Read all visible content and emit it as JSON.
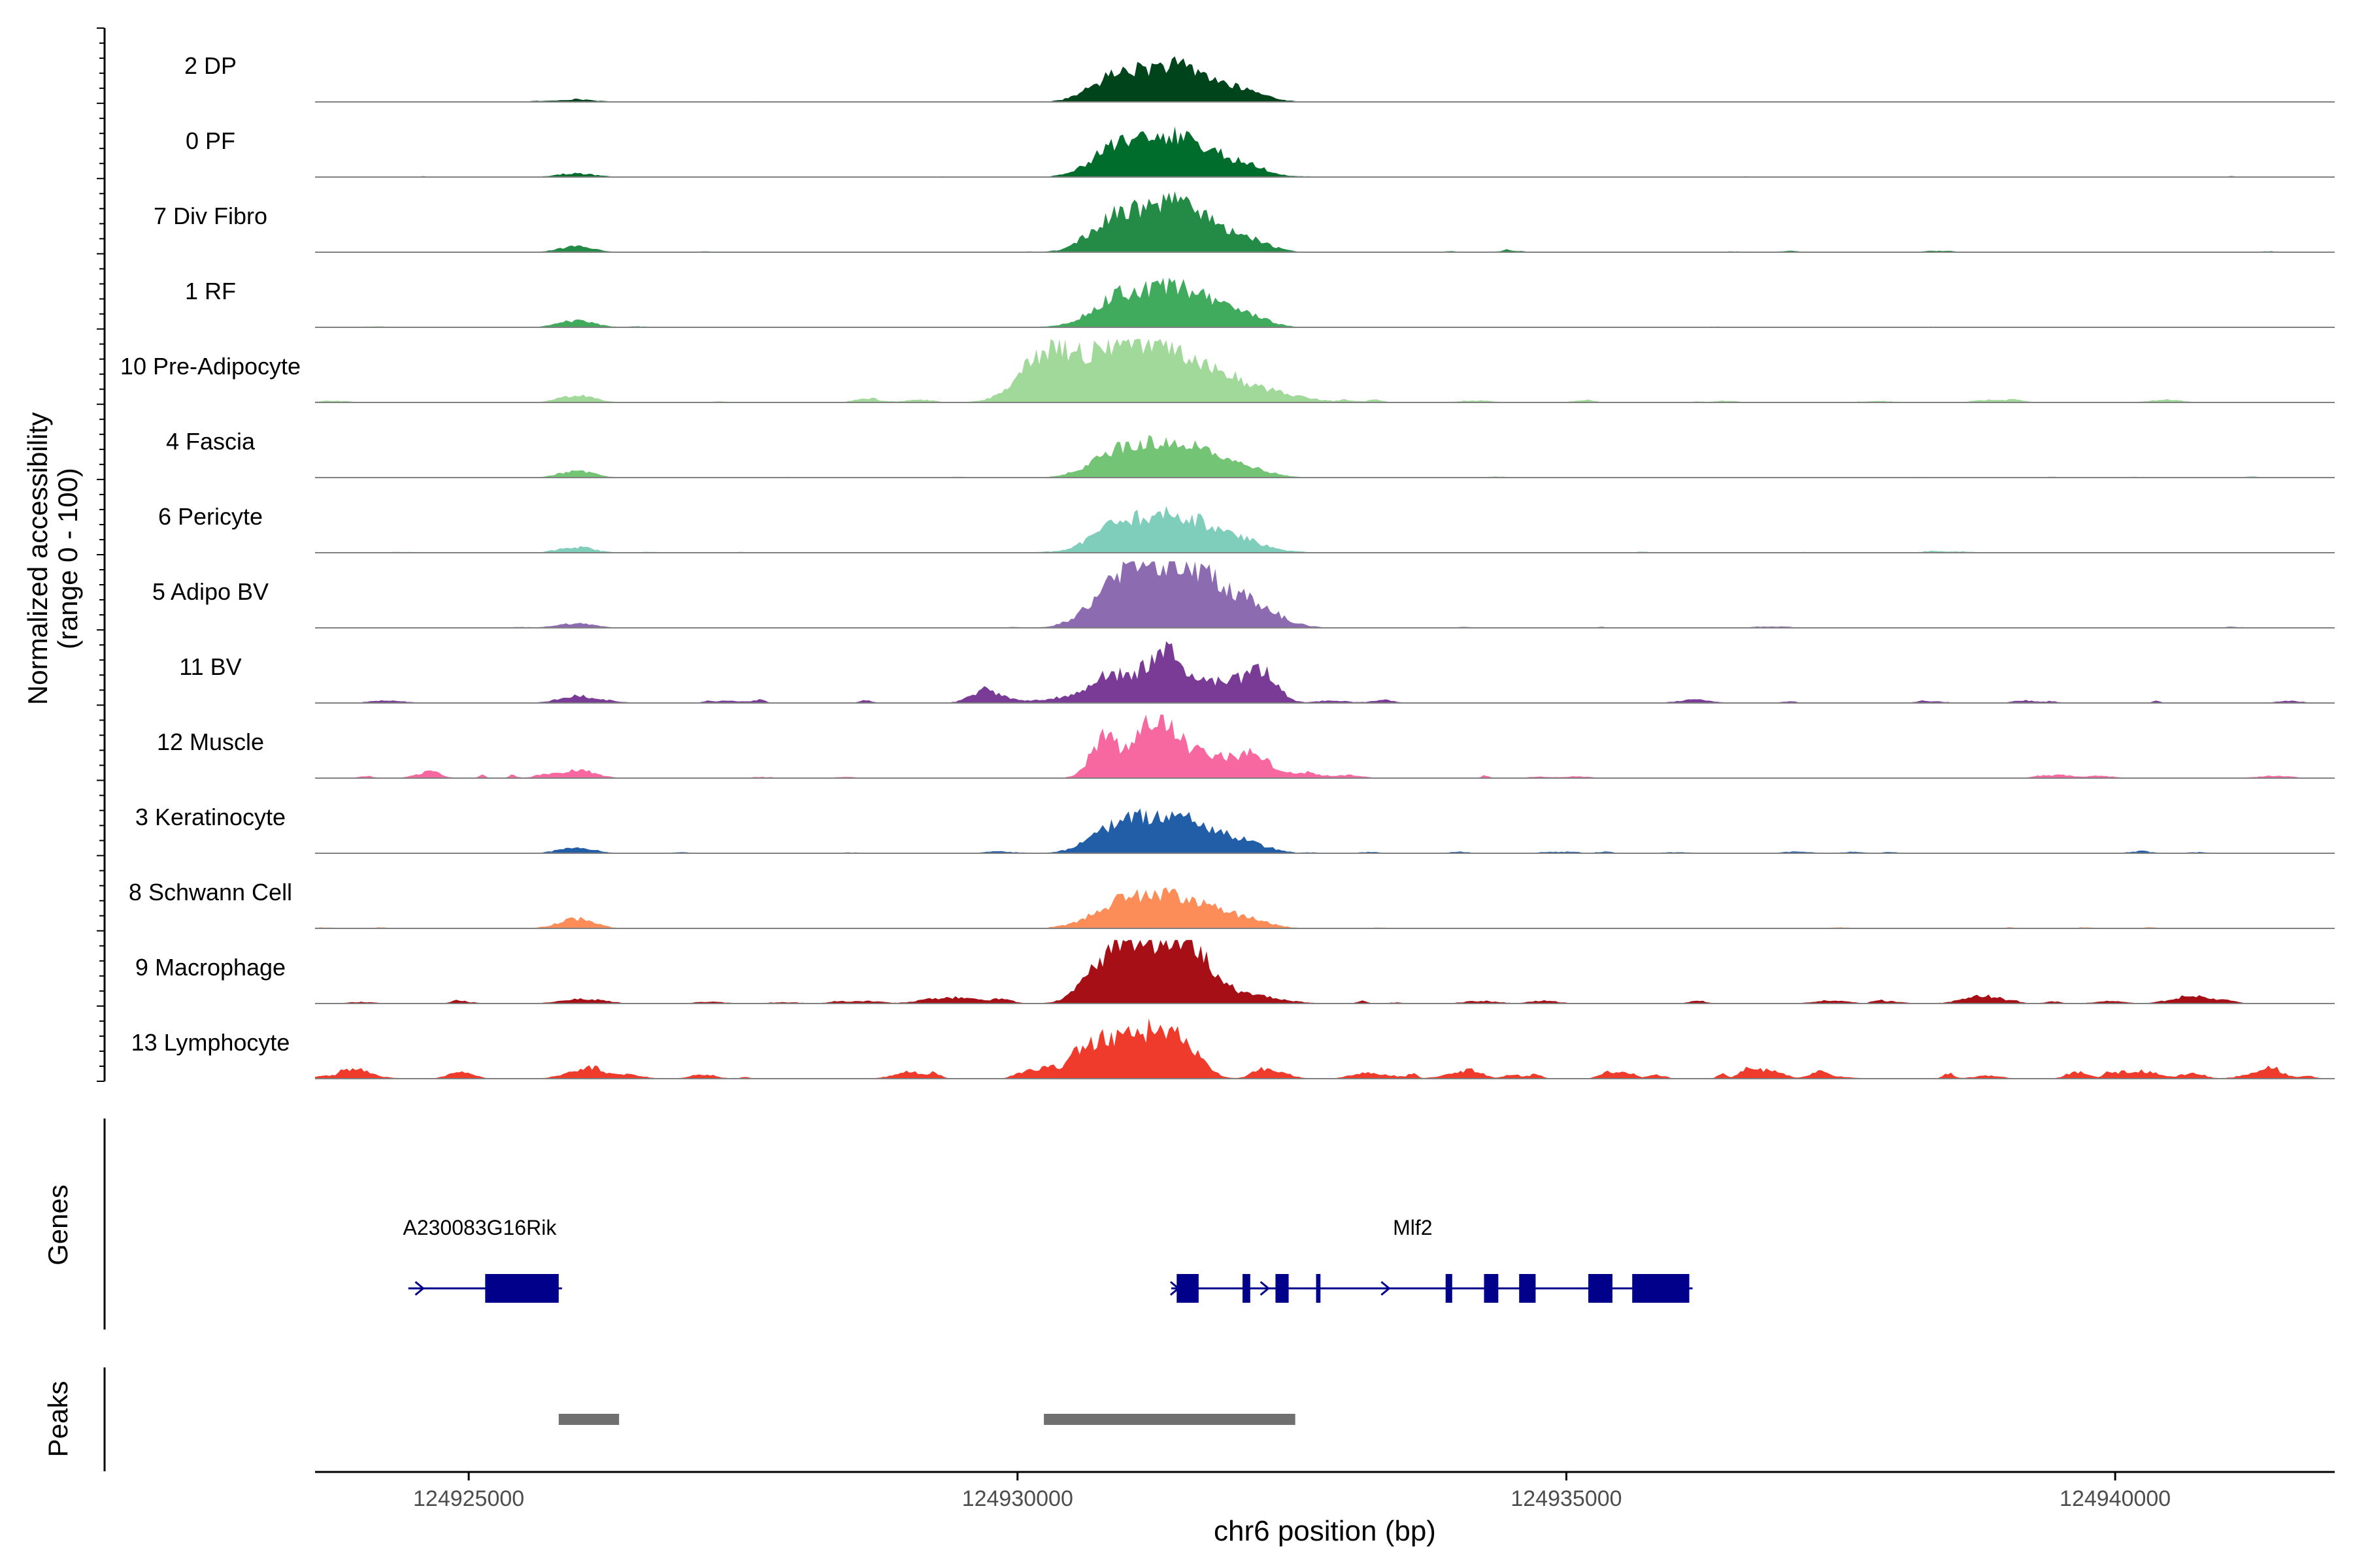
{
  "chart_data": {
    "type": "area",
    "title": "",
    "chromosome": "chr6",
    "xlabel": "chr6 position (bp)",
    "ylabel": "Normalized accessibility",
    "ylabel_sub": "(range 0 - 100)",
    "xlim": [
      124923600,
      124942000
    ],
    "ylim": [
      0,
      100
    ],
    "x_ticks": [
      124925000,
      124930000,
      124935000,
      124940000
    ],
    "x_tick_labels": [
      "124925000",
      "124930000",
      "124935000",
      "124940000"
    ],
    "genes_label": "Genes",
    "peaks_label": "Peaks",
    "tracks": [
      {
        "name": "2 DP",
        "color": "#00441b",
        "level": 0.16,
        "noise": 0.25,
        "left_bump": 0.25,
        "extra": [],
        "shape": "std"
      },
      {
        "name": "0 PF",
        "color": "#006d2c",
        "level": 0.18,
        "noise": 0.3,
        "left_bump": 0.3,
        "extra": [],
        "shape": "std"
      },
      {
        "name": "7 Div Fibro",
        "color": "#238b45",
        "level": 0.21,
        "noise": 0.45,
        "left_bump": 0.4,
        "extra": [],
        "shape": "std"
      },
      {
        "name": "1 RF",
        "color": "#41ab5d",
        "level": 0.18,
        "noise": 0.3,
        "left_bump": 0.55,
        "extra": [],
        "shape": "std"
      },
      {
        "name": "10 Pre-Adipocyte",
        "color": "#a1d99b",
        "level": 0.21,
        "noise": 0.8,
        "left_bump": 0.5,
        "extra": [],
        "shape": "preadipo"
      },
      {
        "name": "4 Fascia",
        "color": "#74c476",
        "level": 0.16,
        "noise": 0.35,
        "left_bump": 0.6,
        "extra": [],
        "shape": "std"
      },
      {
        "name": "6 Pericyte",
        "color": "#7fcdbb",
        "level": 0.17,
        "noise": 0.4,
        "left_bump": 0.5,
        "extra": [],
        "shape": "std"
      },
      {
        "name": "5 Adipo BV",
        "color": "#8c6bb1",
        "level": 0.22,
        "noise": 0.3,
        "left_bump": 0.3,
        "extra": [],
        "shape": "broad"
      },
      {
        "name": "11 BV",
        "color": "#7a3b96",
        "level": 0.21,
        "noise": 1.0,
        "left_bump": 0.5,
        "extra": [],
        "shape": "bv"
      },
      {
        "name": "12 Muscle",
        "color": "#f768a1",
        "level": 0.21,
        "noise": 0.9,
        "left_bump": 0.6,
        "extra": [],
        "shape": "spiky"
      },
      {
        "name": "3 Keratinocyte",
        "color": "#225ea8",
        "level": 0.17,
        "noise": 0.6,
        "left_bump": 0.5,
        "extra": [],
        "shape": "std"
      },
      {
        "name": "8 Schwann Cell",
        "color": "#fc8d59",
        "level": 0.15,
        "noise": 0.45,
        "left_bump": 0.95,
        "extra": [],
        "shape": "std"
      },
      {
        "name": "9 Macrophage",
        "color": "#a50f15",
        "level": 0.21,
        "noise": 1.0,
        "left_bump": 0.3,
        "extra": [
          124938800,
          124940700
        ],
        "shape": "macro"
      },
      {
        "name": "13 Lymphocyte",
        "color": "#ef3b2c",
        "level": 0.2,
        "noise": 2.2,
        "left_bump": 0.3,
        "extra": [],
        "shape": "lympho"
      }
    ],
    "genes": [
      {
        "name": "A230083G16Rik",
        "start": 124924450,
        "end": 124925850,
        "label_x": 124925100,
        "color": "#00008b",
        "exons": [
          [
            124925150,
            124925820
          ]
        ],
        "arrows": [
          124924550
        ]
      },
      {
        "name": "Mlf2",
        "start": 124931400,
        "end": 124936150,
        "label_x": 124933600,
        "color": "#00008b",
        "exons": [
          [
            124931450,
            124931650
          ],
          [
            124932050,
            124932120
          ],
          [
            124932350,
            124932470
          ],
          [
            124932720,
            124932760
          ],
          [
            124933900,
            124933960
          ],
          [
            124934250,
            124934380
          ],
          [
            124934570,
            124934720
          ],
          [
            124935200,
            124935420
          ],
          [
            124935600,
            124936120
          ]
        ],
        "arrows": [
          124931430,
          124932250,
          124933350
        ]
      }
    ],
    "peaks": [
      {
        "start": 124925820,
        "end": 124926370,
        "color": "#707070"
      },
      {
        "start": 124930240,
        "end": 124932530,
        "color": "#707070"
      }
    ]
  }
}
